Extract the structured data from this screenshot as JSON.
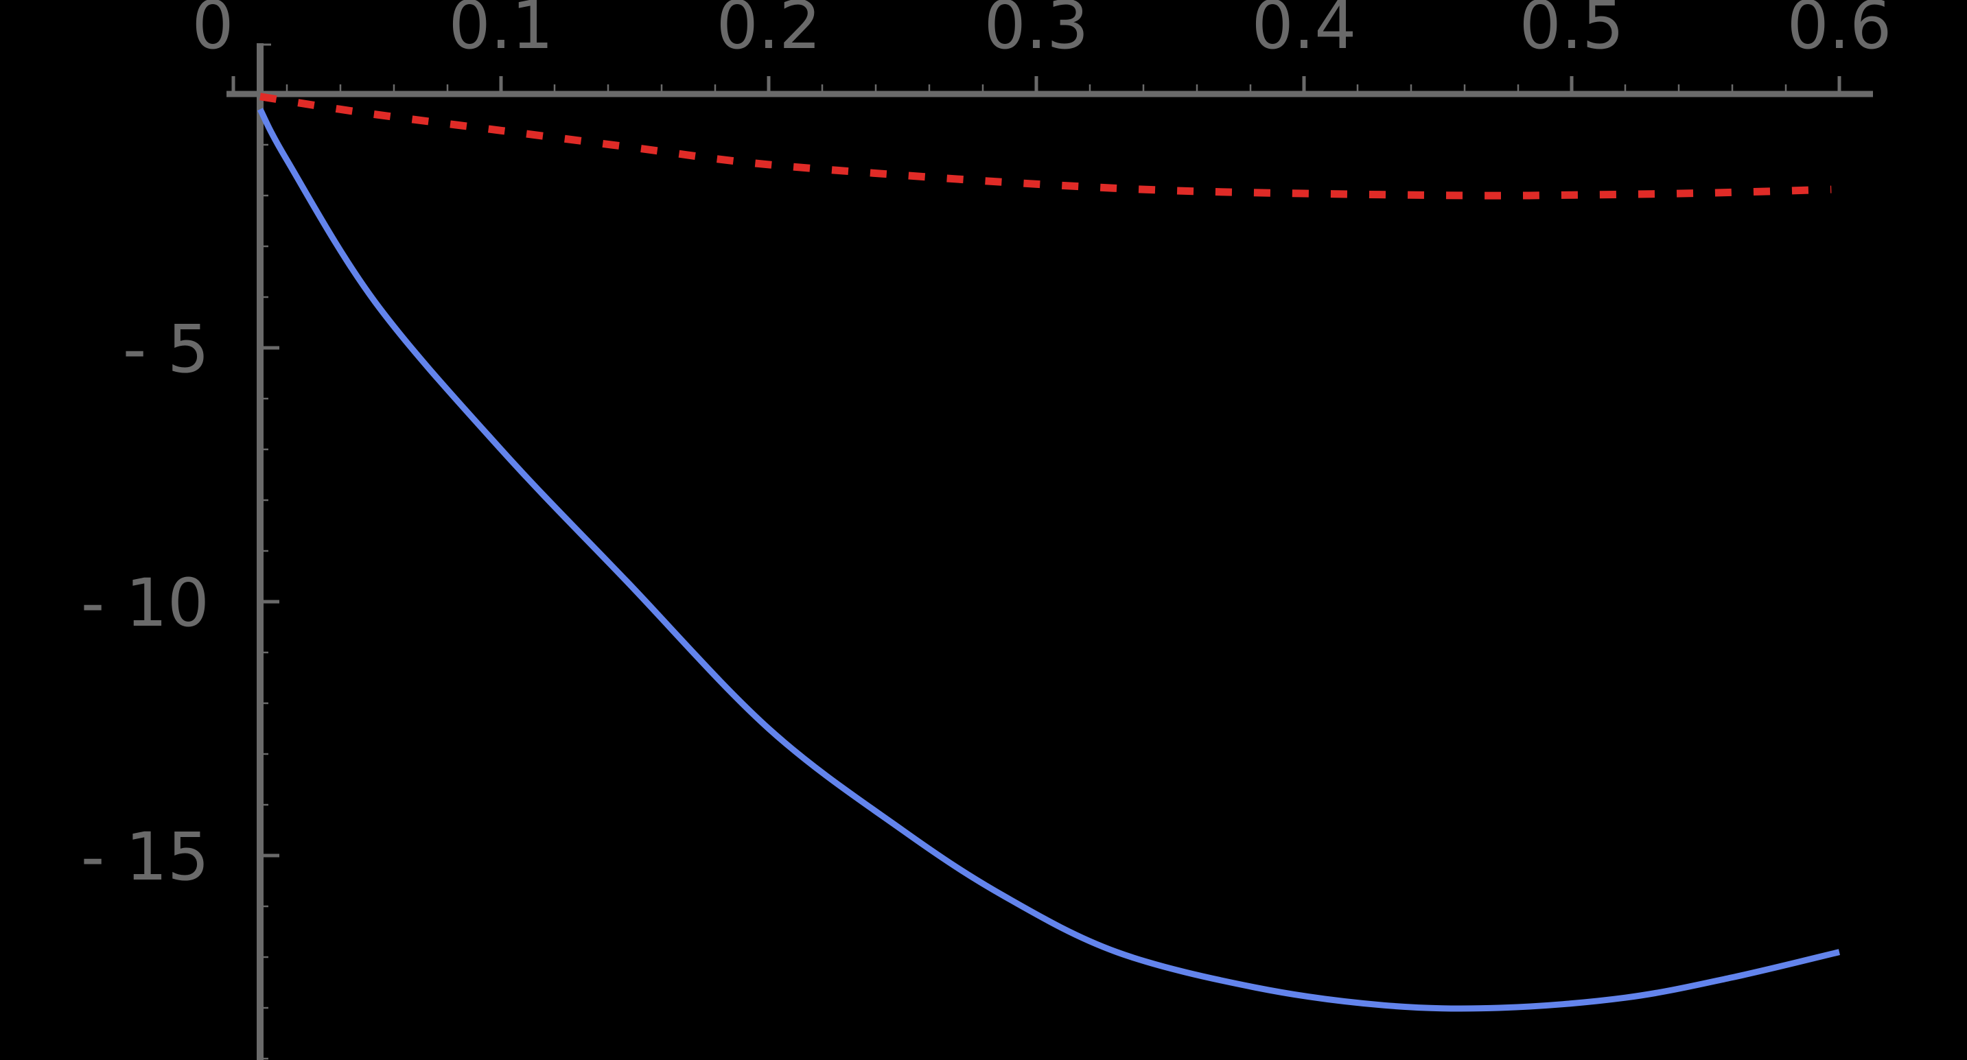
{
  "colors": {
    "background": "#000000",
    "axis": "#6a6a6a",
    "series_solid": "#6384ec",
    "series_dashed": "#e02b27"
  },
  "axes": {
    "x_tick_labels": [
      "0",
      "0.1",
      "0.2",
      "0.3",
      "0.4",
      "0.5",
      "0.6"
    ],
    "y_tick_labels": [
      "- 5",
      "- 10",
      "- 15"
    ]
  },
  "chart_data": {
    "type": "line",
    "title": "",
    "xlabel": "",
    "ylabel": "",
    "xlim": [
      -0.002,
      0.61
    ],
    "ylim": [
      -19.0,
      0.0
    ],
    "x_axis_position": "top (y = 0)",
    "y_axis_crosses_at_x": 0.01,
    "grid": false,
    "legend": null,
    "x_ticks": [
      0,
      0.1,
      0.2,
      0.3,
      0.4,
      0.5,
      0.6
    ],
    "y_ticks": [
      -5,
      -10,
      -15
    ],
    "series": [
      {
        "name": "solid blue curve",
        "style": "solid",
        "color": "#6384ec",
        "x": [
          0.01,
          0.02,
          0.053,
          0.1,
          0.147,
          0.2,
          0.25,
          0.288,
          0.33,
          0.382,
          0.43,
          0.473,
          0.52,
          0.56,
          0.6
        ],
        "y": [
          -0.3,
          -1.3,
          -4.1,
          -7.0,
          -9.6,
          -12.5,
          -14.5,
          -15.8,
          -16.9,
          -17.6,
          -17.95,
          -18.0,
          -17.8,
          -17.4,
          -16.9
        ]
      },
      {
        "name": "dashed red curve",
        "style": "dashed",
        "color": "#e02b27",
        "x": [
          0.01,
          0.05,
          0.1,
          0.15,
          0.194,
          0.25,
          0.302,
          0.35,
          0.4,
          0.463,
          0.5,
          0.55,
          0.597
        ],
        "y": [
          -0.05,
          -0.38,
          -0.72,
          -1.06,
          -1.36,
          -1.6,
          -1.78,
          -1.9,
          -1.96,
          -2.0,
          -1.99,
          -1.95,
          -1.88
        ]
      }
    ]
  }
}
